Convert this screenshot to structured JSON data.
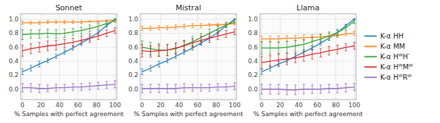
{
  "chart_data": [
    {
      "type": "line",
      "title": "Sonnet",
      "xlabel": "% Samples with perfect agreement",
      "x": [
        0,
        9.090909090909092,
        18.181818181818183,
        27.272727272727273,
        36.36363636363637,
        45.45454545454546,
        54.54545454545455,
        63.63636363636364,
        72.72727272727273,
        81.81818181818183,
        90.9090909090909,
        100
      ],
      "xlim": [
        -2,
        102
      ],
      "ylim": [
        -0.15,
        1.08
      ],
      "xticks": [
        0,
        20,
        40,
        60,
        80,
        100
      ],
      "yticks": [
        {
          "value": 0,
          "label": "0.0"
        },
        0.2,
        0.4,
        0.6,
        0.8,
        {
          "value": 1,
          "label": "1.0"
        }
      ],
      "grid": true,
      "series": [
        {
          "color": "#1f77b4",
          "values": [
            0.25,
            0.3,
            0.36,
            0.41,
            0.47,
            0.53,
            0.59,
            0.66,
            0.73,
            0.81,
            0.91,
            1.0
          ],
          "errors": [
            0.04,
            0.04,
            0.04,
            0.03,
            0.03,
            0.03,
            0.03,
            0.03,
            0.03,
            0.03,
            0.02,
            0.01
          ]
        },
        {
          "color": "#ff7f0e",
          "values": [
            0.95,
            0.95,
            0.95,
            0.96,
            0.96,
            0.96,
            0.96,
            0.96,
            0.97,
            0.97,
            0.98,
            0.99
          ],
          "errors": [
            0.02,
            0.02,
            0.02,
            0.02,
            0.02,
            0.02,
            0.02,
            0.02,
            0.01,
            0.01,
            0.01,
            0.01
          ]
        },
        {
          "color": "#2ca02c",
          "values": [
            0.78,
            0.79,
            0.79,
            0.8,
            0.79,
            0.8,
            0.82,
            0.84,
            0.87,
            0.9,
            0.94,
            0.98
          ],
          "errors": [
            0.07,
            0.06,
            0.06,
            0.06,
            0.06,
            0.06,
            0.05,
            0.05,
            0.05,
            0.04,
            0.03,
            0.02
          ]
        },
        {
          "color": "#d62728",
          "values": [
            0.55,
            0.58,
            0.6,
            0.62,
            0.63,
            0.65,
            0.67,
            0.7,
            0.73,
            0.76,
            0.8,
            0.84
          ],
          "errors": [
            0.08,
            0.07,
            0.07,
            0.07,
            0.07,
            0.06,
            0.06,
            0.06,
            0.06,
            0.05,
            0.05,
            0.04
          ]
        },
        {
          "color": "#9467bd",
          "values": [
            0.02,
            0.02,
            0.01,
            0.01,
            0.02,
            0.02,
            0.03,
            0.03,
            0.04,
            0.05,
            0.06,
            0.07
          ],
          "errors": [
            0.06,
            0.06,
            0.06,
            0.05,
            0.05,
            0.05,
            0.05,
            0.05,
            0.05,
            0.05,
            0.05,
            0.05
          ]
        }
      ]
    },
    {
      "type": "line",
      "title": "Mistral",
      "xlabel": "% Samples with perfect agreement",
      "x": [
        0,
        9.090909090909092,
        18.181818181818183,
        27.272727272727273,
        36.36363636363637,
        45.45454545454546,
        54.54545454545455,
        63.63636363636364,
        72.72727272727273,
        81.81818181818183,
        90.9090909090909,
        100
      ],
      "xlim": [
        -2,
        102
      ],
      "ylim": [
        -0.15,
        1.08
      ],
      "xticks": [
        0,
        20,
        40,
        60,
        80,
        100
      ],
      "yticks": [
        {
          "value": 0,
          "label": "0.0"
        },
        0.2,
        0.4,
        0.6,
        0.8,
        {
          "value": 1,
          "label": "1.0"
        }
      ],
      "grid": true,
      "series": [
        {
          "color": "#1f77b4",
          "values": [
            0.25,
            0.3,
            0.36,
            0.41,
            0.47,
            0.53,
            0.59,
            0.66,
            0.73,
            0.81,
            0.91,
            1.0
          ],
          "errors": [
            0.04,
            0.04,
            0.04,
            0.03,
            0.03,
            0.03,
            0.03,
            0.03,
            0.03,
            0.03,
            0.02,
            0.01
          ]
        },
        {
          "color": "#ff7f0e",
          "values": [
            0.87,
            0.87,
            0.88,
            0.88,
            0.89,
            0.9,
            0.91,
            0.91,
            0.92,
            0.92,
            0.93,
            0.94
          ],
          "errors": [
            0.03,
            0.03,
            0.03,
            0.03,
            0.03,
            0.03,
            0.03,
            0.03,
            0.02,
            0.02,
            0.02,
            0.02
          ]
        },
        {
          "color": "#2ca02c",
          "values": [
            0.6,
            0.58,
            0.56,
            0.56,
            0.58,
            0.63,
            0.68,
            0.74,
            0.8,
            0.86,
            0.92,
            0.97
          ],
          "errors": [
            0.09,
            0.09,
            0.09,
            0.08,
            0.08,
            0.07,
            0.07,
            0.06,
            0.06,
            0.05,
            0.04,
            0.03
          ]
        },
        {
          "color": "#d62728",
          "values": [
            0.55,
            0.54,
            0.55,
            0.56,
            0.59,
            0.62,
            0.66,
            0.7,
            0.73,
            0.76,
            0.79,
            0.82
          ],
          "errors": [
            0.09,
            0.08,
            0.08,
            0.08,
            0.07,
            0.07,
            0.06,
            0.06,
            0.06,
            0.05,
            0.05,
            0.04
          ]
        },
        {
          "color": "#9467bd",
          "values": [
            0.01,
            0.01,
            0.01,
            0.01,
            0.01,
            0.02,
            0.02,
            0.02,
            0.02,
            0.03,
            0.03,
            0.04
          ],
          "errors": [
            0.06,
            0.06,
            0.06,
            0.06,
            0.06,
            0.06,
            0.05,
            0.05,
            0.05,
            0.05,
            0.05,
            0.05
          ]
        }
      ]
    },
    {
      "type": "line",
      "title": "Llama",
      "xlabel": "% Samples with perfect agreement",
      "x": [
        0,
        9.090909090909092,
        18.181818181818183,
        27.272727272727273,
        36.36363636363637,
        45.45454545454546,
        54.54545454545455,
        63.63636363636364,
        72.72727272727273,
        81.81818181818183,
        90.9090909090909,
        100
      ],
      "xlim": [
        -2,
        102
      ],
      "ylim": [
        -0.15,
        1.08
      ],
      "xticks": [
        0,
        20,
        40,
        60,
        80,
        100
      ],
      "yticks": [
        {
          "value": 0,
          "label": "0.0"
        },
        0.2,
        0.4,
        0.6,
        0.8,
        {
          "value": 1,
          "label": "1.0"
        }
      ],
      "grid": true,
      "legend": "right",
      "series": [
        {
          "name": "K-α HH",
          "color": "#1f77b4",
          "values": [
            0.25,
            0.3,
            0.36,
            0.41,
            0.47,
            0.53,
            0.59,
            0.66,
            0.73,
            0.81,
            0.91,
            1.0
          ],
          "errors": [
            0.04,
            0.04,
            0.04,
            0.03,
            0.03,
            0.03,
            0.03,
            0.03,
            0.03,
            0.03,
            0.02,
            0.01
          ]
        },
        {
          "name": "K-α MM",
          "color": "#ff7f0e",
          "values": [
            0.72,
            0.72,
            0.72,
            0.73,
            0.73,
            0.74,
            0.74,
            0.75,
            0.76,
            0.77,
            0.79,
            0.8
          ],
          "errors": [
            0.04,
            0.04,
            0.04,
            0.04,
            0.04,
            0.04,
            0.04,
            0.04,
            0.04,
            0.03,
            0.03,
            0.03
          ]
        },
        {
          "name": "K-α HᵂH′",
          "color": "#2ca02c",
          "values": [
            0.59,
            0.59,
            0.59,
            0.6,
            0.62,
            0.64,
            0.68,
            0.72,
            0.76,
            0.81,
            0.88,
            0.97
          ],
          "errors": [
            0.09,
            0.09,
            0.08,
            0.08,
            0.08,
            0.07,
            0.07,
            0.06,
            0.06,
            0.05,
            0.04,
            0.03
          ]
        },
        {
          "name": "K-α HᵂMᵂ",
          "color": "#d62728",
          "values": [
            0.38,
            0.4,
            0.42,
            0.43,
            0.45,
            0.47,
            0.5,
            0.52,
            0.55,
            0.57,
            0.6,
            0.62
          ],
          "errors": [
            0.09,
            0.08,
            0.08,
            0.08,
            0.07,
            0.07,
            0.07,
            0.06,
            0.06,
            0.06,
            0.05,
            0.05
          ]
        },
        {
          "name": "K-α HᵂRᵂ",
          "color": "#9467bd",
          "values": [
            0.0,
            0.0,
            0.0,
            -0.01,
            -0.01,
            0.0,
            0.0,
            0.0,
            0.01,
            0.01,
            0.02,
            0.03
          ],
          "errors": [
            0.07,
            0.07,
            0.07,
            0.07,
            0.07,
            0.07,
            0.06,
            0.06,
            0.06,
            0.06,
            0.06,
            0.05
          ]
        }
      ]
    }
  ]
}
